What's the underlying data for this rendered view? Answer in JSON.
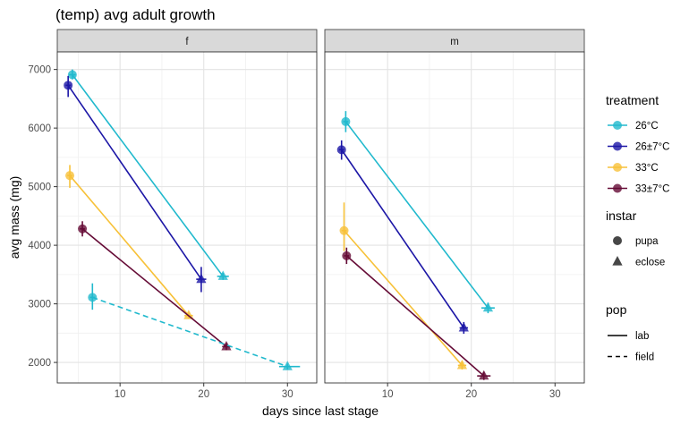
{
  "chart_data": {
    "type": "scatter",
    "title": "(temp) avg adult growth",
    "xlabel": "days since last stage",
    "ylabel": "avg mass (mg)",
    "xlim": [
      2.5,
      33.5
    ],
    "ylim": [
      1650,
      7300
    ],
    "x_ticks": [
      10,
      20,
      30
    ],
    "y_ticks": [
      2000,
      3000,
      4000,
      5000,
      6000,
      7000
    ],
    "grid": true,
    "legend_position": "right",
    "facets": [
      "f",
      "m"
    ],
    "colors": {
      "26°C": "#20b9cd",
      "26±7°C": "#1c16a6",
      "33°C": "#f7c138",
      "33±7°C": "#650b36"
    },
    "legends": [
      {
        "title": "treatment",
        "entries": [
          "26°C",
          "26±7°C",
          "33°C",
          "33±7°C"
        ]
      },
      {
        "title": "instar",
        "entries": [
          "pupa",
          "eclose"
        ],
        "shapes": [
          "circle",
          "triangle"
        ]
      },
      {
        "title": "pop",
        "entries": [
          "lab",
          "field"
        ],
        "linetypes": [
          "solid",
          "dashed"
        ]
      }
    ],
    "series": [
      {
        "facet": "f",
        "treatment": "26°C",
        "pop": "lab",
        "points": [
          {
            "instar": "pupa",
            "x": 4.3,
            "y": 6910,
            "ylow": 6830,
            "yhigh": 7000,
            "xlow": 3.9,
            "xhigh": 4.7
          },
          {
            "instar": "eclose",
            "x": 22.3,
            "y": 3470,
            "ylow": 3410,
            "yhigh": 3530,
            "xlow": 21.6,
            "xhigh": 23.0
          }
        ]
      },
      {
        "facet": "f",
        "treatment": "26±7°C",
        "pop": "lab",
        "points": [
          {
            "instar": "pupa",
            "x": 3.8,
            "y": 6730,
            "ylow": 6530,
            "yhigh": 6890,
            "xlow": 3.5,
            "xhigh": 4.1
          },
          {
            "instar": "eclose",
            "x": 19.7,
            "y": 3420,
            "ylow": 3200,
            "yhigh": 3630,
            "xlow": 19.1,
            "xhigh": 20.3
          }
        ]
      },
      {
        "facet": "f",
        "treatment": "33°C",
        "pop": "lab",
        "points": [
          {
            "instar": "pupa",
            "x": 4.0,
            "y": 5190,
            "ylow": 4980,
            "yhigh": 5370,
            "xlow": 3.7,
            "xhigh": 4.3
          },
          {
            "instar": "eclose",
            "x": 18.2,
            "y": 2800,
            "ylow": 2750,
            "yhigh": 2850,
            "xlow": 17.7,
            "xhigh": 18.7
          }
        ]
      },
      {
        "facet": "f",
        "treatment": "33±7°C",
        "pop": "lab",
        "points": [
          {
            "instar": "pupa",
            "x": 5.5,
            "y": 4280,
            "ylow": 4150,
            "yhigh": 4410,
            "xlow": 5.2,
            "xhigh": 5.8
          },
          {
            "instar": "eclose",
            "x": 22.7,
            "y": 2270,
            "ylow": 2210,
            "yhigh": 2330,
            "xlow": 22.2,
            "xhigh": 23.2
          }
        ]
      },
      {
        "facet": "f",
        "treatment": "26°C",
        "pop": "field",
        "points": [
          {
            "instar": "pupa",
            "x": 6.7,
            "y": 3110,
            "ylow": 2900,
            "yhigh": 3350,
            "xlow": 6.4,
            "xhigh": 7.0
          },
          {
            "instar": "eclose",
            "x": 30.0,
            "y": 1930,
            "ylow": 1880,
            "yhigh": 1980,
            "xlow": 29.0,
            "xhigh": 31.5
          }
        ]
      },
      {
        "facet": "m",
        "treatment": "26°C",
        "pop": "lab",
        "points": [
          {
            "instar": "pupa",
            "x": 5.0,
            "y": 6110,
            "ylow": 5930,
            "yhigh": 6290,
            "xlow": 4.7,
            "xhigh": 5.3
          },
          {
            "instar": "eclose",
            "x": 22.0,
            "y": 2930,
            "ylow": 2840,
            "yhigh": 3020,
            "xlow": 21.2,
            "xhigh": 22.8
          }
        ]
      },
      {
        "facet": "m",
        "treatment": "26±7°C",
        "pop": "lab",
        "points": [
          {
            "instar": "pupa",
            "x": 4.5,
            "y": 5630,
            "ylow": 5460,
            "yhigh": 5790,
            "xlow": 4.2,
            "xhigh": 4.8
          },
          {
            "instar": "eclose",
            "x": 19.1,
            "y": 2590,
            "ylow": 2490,
            "yhigh": 2690,
            "xlow": 18.6,
            "xhigh": 19.6
          }
        ]
      },
      {
        "facet": "m",
        "treatment": "33°C",
        "pop": "lab",
        "points": [
          {
            "instar": "pupa",
            "x": 4.8,
            "y": 4250,
            "ylow": 3900,
            "yhigh": 4730,
            "xlow": 4.5,
            "xhigh": 5.1
          },
          {
            "instar": "eclose",
            "x": 18.9,
            "y": 1950,
            "ylow": 1880,
            "yhigh": 2020,
            "xlow": 18.4,
            "xhigh": 19.4
          }
        ]
      },
      {
        "facet": "m",
        "treatment": "33±7°C",
        "pop": "lab",
        "points": [
          {
            "instar": "pupa",
            "x": 5.1,
            "y": 3820,
            "ylow": 3680,
            "yhigh": 3960,
            "xlow": 4.8,
            "xhigh": 5.4
          },
          {
            "instar": "eclose",
            "x": 21.5,
            "y": 1770,
            "ylow": 1700,
            "yhigh": 1840,
            "xlow": 20.7,
            "xhigh": 22.3
          }
        ]
      }
    ]
  }
}
